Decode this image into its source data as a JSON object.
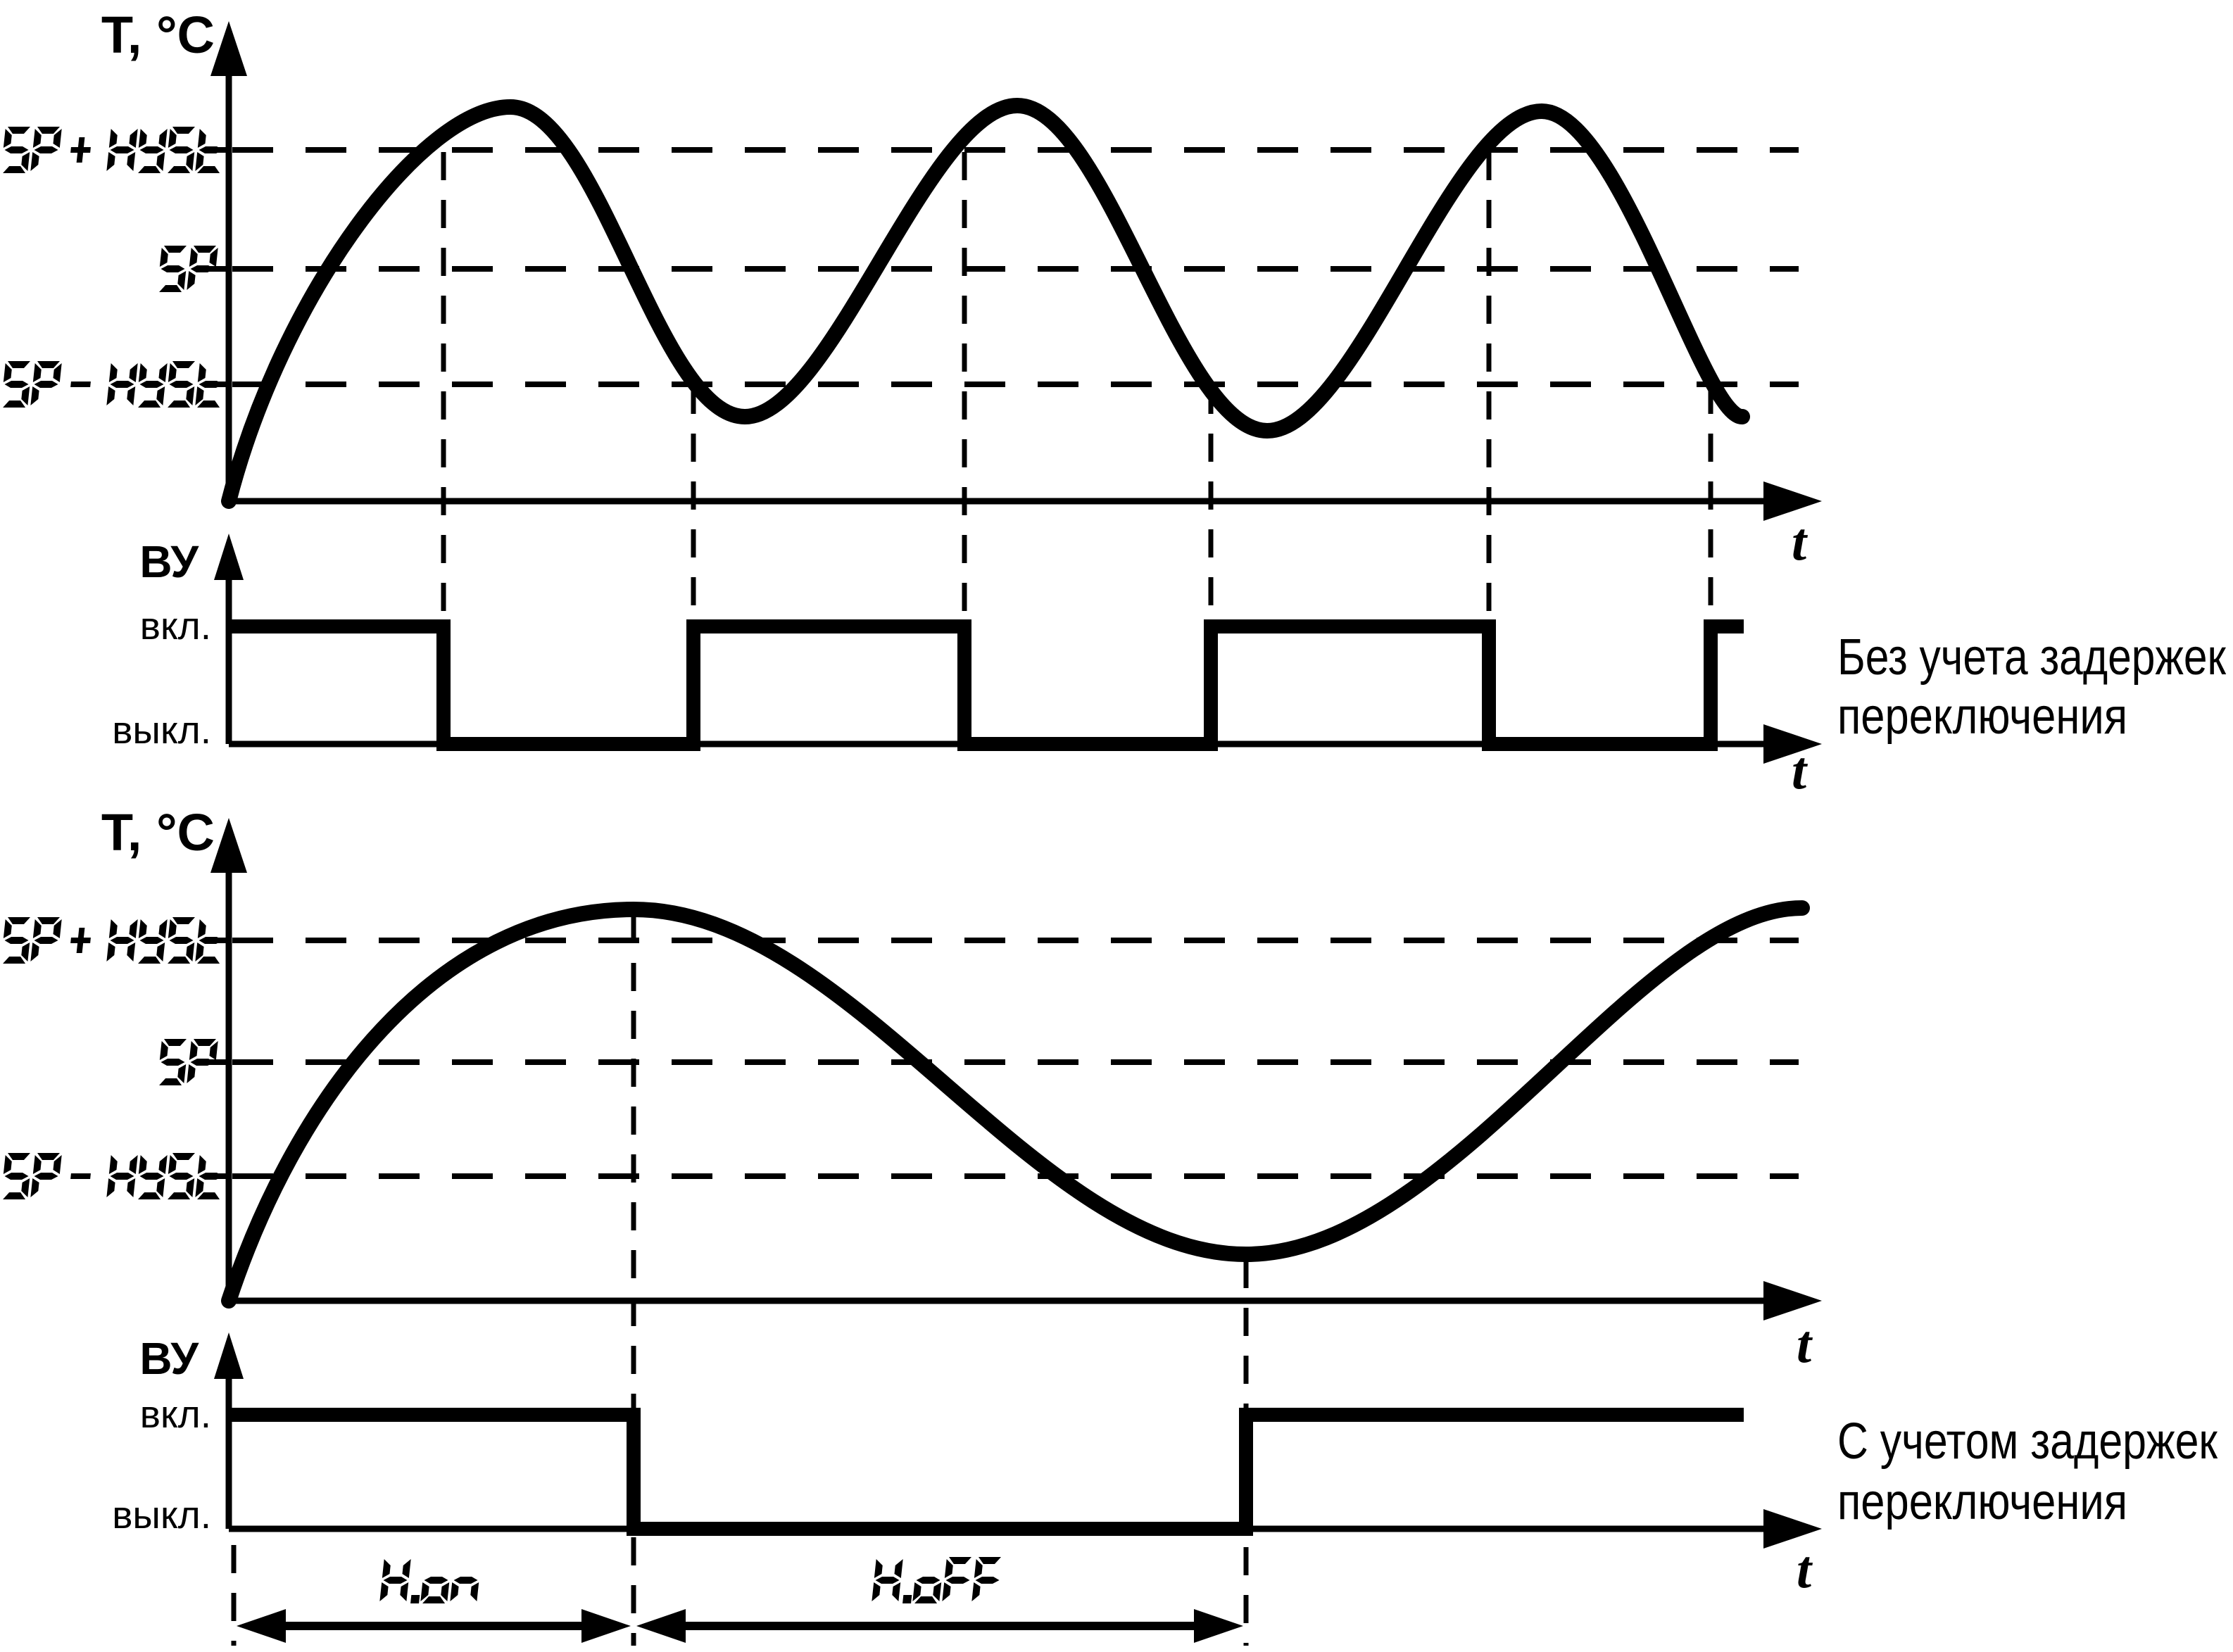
{
  "figure": {
    "background_color": "#ffffff",
    "ink_color": "#000000"
  },
  "panel1": {
    "temp_plot": {
      "y_axis_label": "T, °C",
      "x_axis_label": "t",
      "levels": [
        {
          "label": "SP + HYSt"
        },
        {
          "label": "SP"
        },
        {
          "label": "SP - HYSt"
        }
      ]
    },
    "output_plot": {
      "y_axis_label": "ВУ",
      "x_axis_label": "t",
      "on_label": "вкл.",
      "off_label": "выкл."
    },
    "caption_line1": "Без учета задержек",
    "caption_line2": "переключения"
  },
  "panel2": {
    "temp_plot": {
      "y_axis_label": "T, °C",
      "x_axis_label": "t",
      "levels": [
        {
          "label": "SP + HYSt"
        },
        {
          "label": "SP"
        },
        {
          "label": "SP - HYSt"
        }
      ]
    },
    "output_plot": {
      "y_axis_label": "ВУ",
      "x_axis_label": "t",
      "on_label": "вкл.",
      "off_label": "выкл."
    },
    "delay_on_label": "H.on",
    "delay_off_label": "H.oFF",
    "caption_line1": "С учетом задержек",
    "caption_line2": "переключения"
  },
  "chart_data": [
    {
      "type": "line",
      "title": "Без учета задержек переключения",
      "ylabel": "T, °C",
      "xlabel": "t",
      "y_reference_lines": [
        "SP + HYSt",
        "SP",
        "SP - HYSt"
      ],
      "x_units": "relative time (0..1 of visible axis)",
      "series": [
        {
          "name": "T(t)",
          "shape": "oscillating temperature curve, peaks above SP + HYSt, troughs below SP - HYSt",
          "peaks_x_rel": [
            0.18,
            0.5,
            0.83
          ],
          "troughs_x_rel": [
            0.33,
            0.66
          ]
        },
        {
          "name": "ВУ",
          "levels": [
            "вкл.",
            "выкл."
          ],
          "initial_state": "вкл.",
          "switch_x_rel": [
            0.136,
            0.295,
            0.467,
            0.624,
            0.801,
            0.942
          ]
        }
      ],
      "grid": "dashed reference lines only",
      "legend": "none"
    },
    {
      "type": "line",
      "title": "С учетом задержек переключения",
      "ylabel": "T, °C",
      "xlabel": "t",
      "y_reference_lines": [
        "SP + HYSt",
        "SP",
        "SP - HYSt"
      ],
      "x_units": "relative time (0..1 of visible axis)",
      "series": [
        {
          "name": "T(t)",
          "shape": "one slow oscillation: broad peak above SP + HYSt, broad trough below SP - HYSt, rising at end",
          "peaks_x_rel": [
            0.257
          ],
          "troughs_x_rel": [
            0.646
          ]
        },
        {
          "name": "ВУ",
          "levels": [
            "вкл.",
            "выкл."
          ],
          "initial_state": "вкл.",
          "switch_x_rel": [
            0.257,
            0.646
          ]
        }
      ],
      "annotations": [
        "H.on",
        "H.oFF"
      ],
      "grid": "dashed reference lines only",
      "legend": "none"
    }
  ]
}
